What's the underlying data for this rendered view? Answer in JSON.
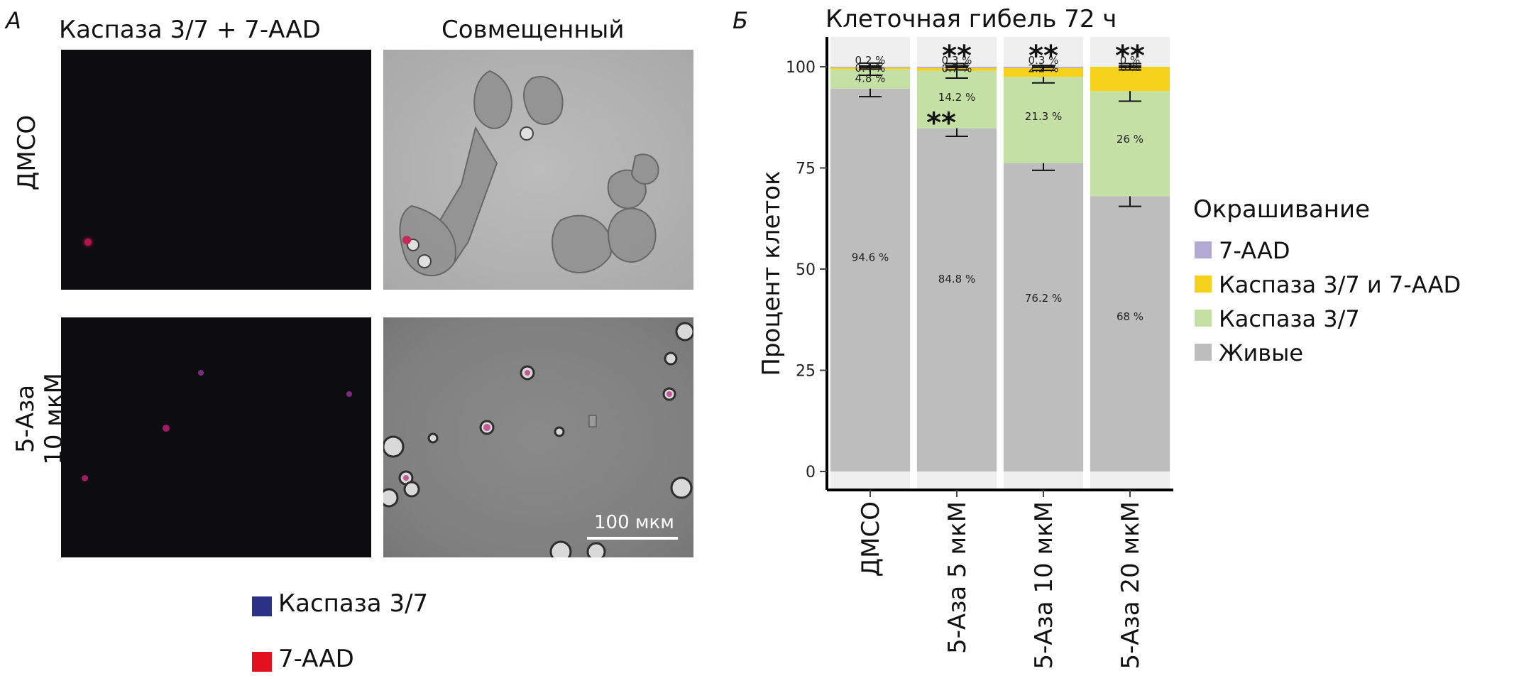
{
  "panel_a": {
    "letter": "А",
    "col_left": "Каспаза 3/7 + 7-AAD",
    "col_right": "Совмещенный",
    "row1": "ДМСО",
    "row2_line1": "5-Аза",
    "row2_line2": "10 мкМ",
    "scalebar": "100 мкм",
    "legend": [
      {
        "label": "Каспаза 3/7",
        "color": "#2b3285"
      },
      {
        "label": "7-AAD",
        "color": "#e3101f"
      }
    ]
  },
  "panel_b": {
    "letter": "Б"
  },
  "chart_data": {
    "type": "bar",
    "stacked": true,
    "title": "Клеточная гибель 72 ч",
    "xlabel": "",
    "ylabel": "Процент клеток",
    "ylim": [
      0,
      100
    ],
    "yticks": [
      0,
      25,
      50,
      75,
      100
    ],
    "categories": [
      "ДМСО",
      "5-Аза 5 мкМ",
      "5-Аза 10 мкМ",
      "5-Аза 20 мкМ"
    ],
    "legend_title": "Окрашивание",
    "legend_position": "right",
    "grid": false,
    "series": [
      {
        "name": "Живые",
        "color": "#bdbdbd",
        "values": [
          94.6,
          84.8,
          76.2,
          68
        ],
        "labels": [
          "94.6 %",
          "84.8 %",
          "76.2 %",
          "68 %"
        ],
        "errors": [
          2.0,
          2.0,
          1.8,
          2.5
        ]
      },
      {
        "name": "Каспаза 3/7",
        "color": "#c5e0a5",
        "values": [
          4.8,
          14.2,
          21.3,
          26
        ],
        "labels": [
          "4.8 %",
          "14.2 %",
          "21.3 %",
          "26 %"
        ],
        "errors": [
          1.5,
          1.8,
          1.5,
          2.5
        ]
      },
      {
        "name": "Каспаза 3/7 и 7-AAD",
        "color": "#f6d11b",
        "values": [
          0.4,
          0.7,
          2.2,
          6
        ],
        "labels": [
          "0.4 %",
          "0.7 %",
          "2.2 %",
          "6 %"
        ],
        "errors": [
          0.4,
          0.5,
          0.6,
          0.8
        ]
      },
      {
        "name": "7-AAD",
        "color": "#b3aad4",
        "values": [
          0.2,
          0.3,
          0.3,
          0.0
        ],
        "labels": [
          "0.2 %",
          "0.3 %",
          "0.3 %",
          "0 %"
        ],
        "errors": [
          0.2,
          0.2,
          0.2,
          0.2
        ]
      }
    ],
    "legend_order": [
      "7-AAD",
      "Каспаза 3/7 и 7-AAD",
      "Каспаза 3/7",
      "Живые"
    ],
    "annotations": [
      {
        "category": "5-Аза 5 мкМ",
        "text": "**",
        "at_value": 100
      },
      {
        "category": "5-Аза 10 мкМ",
        "text": "**",
        "at_value": 100
      },
      {
        "category": "5-Аза 20 мкМ",
        "text": "**",
        "at_value": 100
      },
      {
        "category": "5-Аза 5 мкМ",
        "text": "**",
        "at_value": 84.8
      }
    ]
  }
}
